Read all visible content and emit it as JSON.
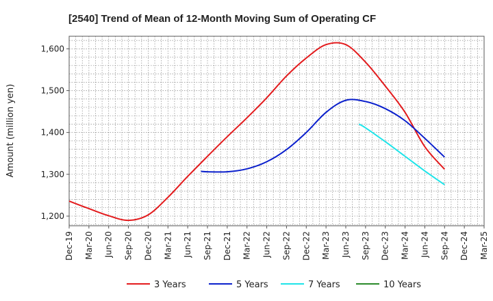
{
  "chart_data": {
    "type": "line",
    "title": "[2540]  Trend of Mean of 12-Month Moving Sum of Operating CF",
    "xlabel": "",
    "ylabel": "Amount (million yen)",
    "ylim": [
      1177,
      1630
    ],
    "yticks": [
      1200,
      1300,
      1400,
      1500,
      1600
    ],
    "ytick_labels": [
      "1,200",
      "1,300",
      "1,400",
      "1,500",
      "1,600"
    ],
    "categories": [
      "Dec-19",
      "Mar-20",
      "Jun-20",
      "Sep-20",
      "Dec-20",
      "Mar-21",
      "Jun-21",
      "Sep-21",
      "Dec-21",
      "Mar-22",
      "Jun-22",
      "Sep-22",
      "Dec-22",
      "Mar-23",
      "Jun-23",
      "Sep-23",
      "Dec-23",
      "Mar-24",
      "Jun-24",
      "Sep-24",
      "Dec-24",
      "Mar-25"
    ],
    "grid": true,
    "legend_position": "bottom",
    "series": [
      {
        "name": "3 Years",
        "color": "#e31a1c",
        "points": [
          [
            0,
            1236
          ],
          [
            1,
            1218
          ],
          [
            2,
            1201
          ],
          [
            3,
            1190
          ],
          [
            4,
            1203
          ],
          [
            5,
            1245
          ],
          [
            6,
            1295
          ],
          [
            7,
            1343
          ],
          [
            8,
            1390
          ],
          [
            9,
            1435
          ],
          [
            10,
            1483
          ],
          [
            11,
            1535
          ],
          [
            12,
            1578
          ],
          [
            13,
            1610
          ],
          [
            14,
            1610
          ],
          [
            15,
            1568
          ],
          [
            16,
            1511
          ],
          [
            17,
            1448
          ],
          [
            18,
            1366
          ],
          [
            19,
            1312
          ]
        ]
      },
      {
        "name": "5 Years",
        "color": "#0a1fcc",
        "points": [
          [
            6.67,
            1307
          ],
          [
            7,
            1306
          ],
          [
            8,
            1306
          ],
          [
            9,
            1313
          ],
          [
            10,
            1330
          ],
          [
            11,
            1359
          ],
          [
            12,
            1400
          ],
          [
            13,
            1448
          ],
          [
            14,
            1477
          ],
          [
            15,
            1474
          ],
          [
            16,
            1457
          ],
          [
            17,
            1428
          ],
          [
            18,
            1386
          ],
          [
            19,
            1341
          ]
        ]
      },
      {
        "name": "7 Years",
        "color": "#1de3e8",
        "points": [
          [
            14.67,
            1420
          ],
          [
            15,
            1411
          ],
          [
            16,
            1378
          ],
          [
            17,
            1343
          ],
          [
            18,
            1308
          ],
          [
            19,
            1275
          ]
        ]
      },
      {
        "name": "10 Years",
        "color": "#2a8a2a",
        "points": []
      }
    ]
  }
}
